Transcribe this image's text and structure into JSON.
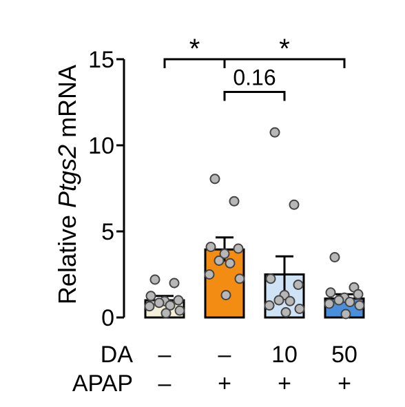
{
  "chart_data": {
    "type": "bar",
    "ylabel_prefix": "Relative ",
    "ylabel_gene": "Ptgs2",
    "ylabel_suffix": " mRNA",
    "ylim": [
      0,
      15
    ],
    "yticks": [
      "0",
      "5",
      "10",
      "15"
    ],
    "groups": [
      {
        "da": "–",
        "apap": "–",
        "mean": 1.0,
        "sem": 0.25,
        "color": "#f3efd9",
        "points": [
          2.2,
          2.0,
          1.25,
          1.0,
          0.95,
          0.85,
          0.7,
          0.65,
          0.4,
          0.25
        ]
      },
      {
        "da": "–",
        "apap": "+",
        "mean": 3.95,
        "sem": 0.7,
        "color": "#f28c12",
        "points": [
          8.05,
          6.75,
          4.1,
          4.0,
          3.7,
          3.3,
          3.15,
          2.5,
          2.25,
          1.3
        ]
      },
      {
        "da": "10",
        "apap": "+",
        "mean": 2.5,
        "sem": 1.05,
        "color": "#cfe3f7",
        "points": [
          10.75,
          6.55,
          2.25,
          1.9,
          1.3,
          1.0,
          0.95,
          0.7,
          0.5,
          0.3
        ]
      },
      {
        "da": "50",
        "apap": "+",
        "mean": 1.1,
        "sem": 0.25,
        "color": "#4a8fdc",
        "points": [
          3.5,
          1.75,
          1.45,
          1.35,
          1.15,
          1.0,
          0.9,
          0.8,
          0.7,
          0.2
        ]
      }
    ],
    "row_labels": {
      "da": "DA",
      "apap": "APAP"
    },
    "annotations": [
      {
        "from": 0,
        "to": 1,
        "y": 15,
        "label": "*"
      },
      {
        "from": 1,
        "to": 3,
        "y": 15,
        "label": "*"
      },
      {
        "from": 1,
        "to": 2,
        "y": 13.1,
        "label": "0.16"
      }
    ]
  }
}
